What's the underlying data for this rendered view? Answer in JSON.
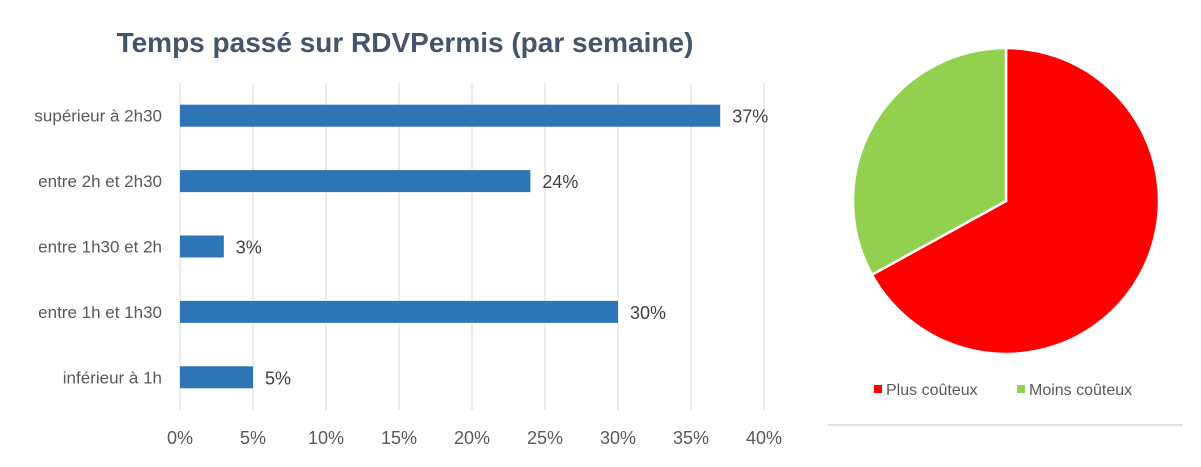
{
  "chart_data": [
    {
      "type": "bar",
      "orientation": "horizontal",
      "title": "Temps passé sur RDVPermis (par semaine)",
      "categories": [
        "supérieur à 2h30",
        "entre 2h et 2h30",
        "entre 1h30 et 2h",
        "entre 1h et 1h30",
        "inférieur à 1h"
      ],
      "values": [
        37,
        24,
        3,
        30,
        5
      ],
      "data_labels": [
        "37%",
        "24%",
        "3%",
        "30%",
        "5%"
      ],
      "xlim": [
        0,
        40
      ],
      "x_ticks": [
        0,
        5,
        10,
        15,
        20,
        25,
        30,
        35,
        40
      ],
      "x_tick_labels": [
        "0%",
        "5%",
        "10%",
        "15%",
        "20%",
        "25%",
        "30%",
        "35%",
        "40%"
      ],
      "grid": "vertical",
      "bar_color": "#2E75B6",
      "title_color": "#44546A",
      "xlabel": "",
      "ylabel": ""
    },
    {
      "type": "pie",
      "labels": [
        "Plus coûteux",
        "Moins coûteux"
      ],
      "values": [
        67,
        33
      ],
      "colors": [
        "#FF0000",
        "#92D050"
      ],
      "legend": "bottom",
      "start_angle_deg": 0
    }
  ]
}
